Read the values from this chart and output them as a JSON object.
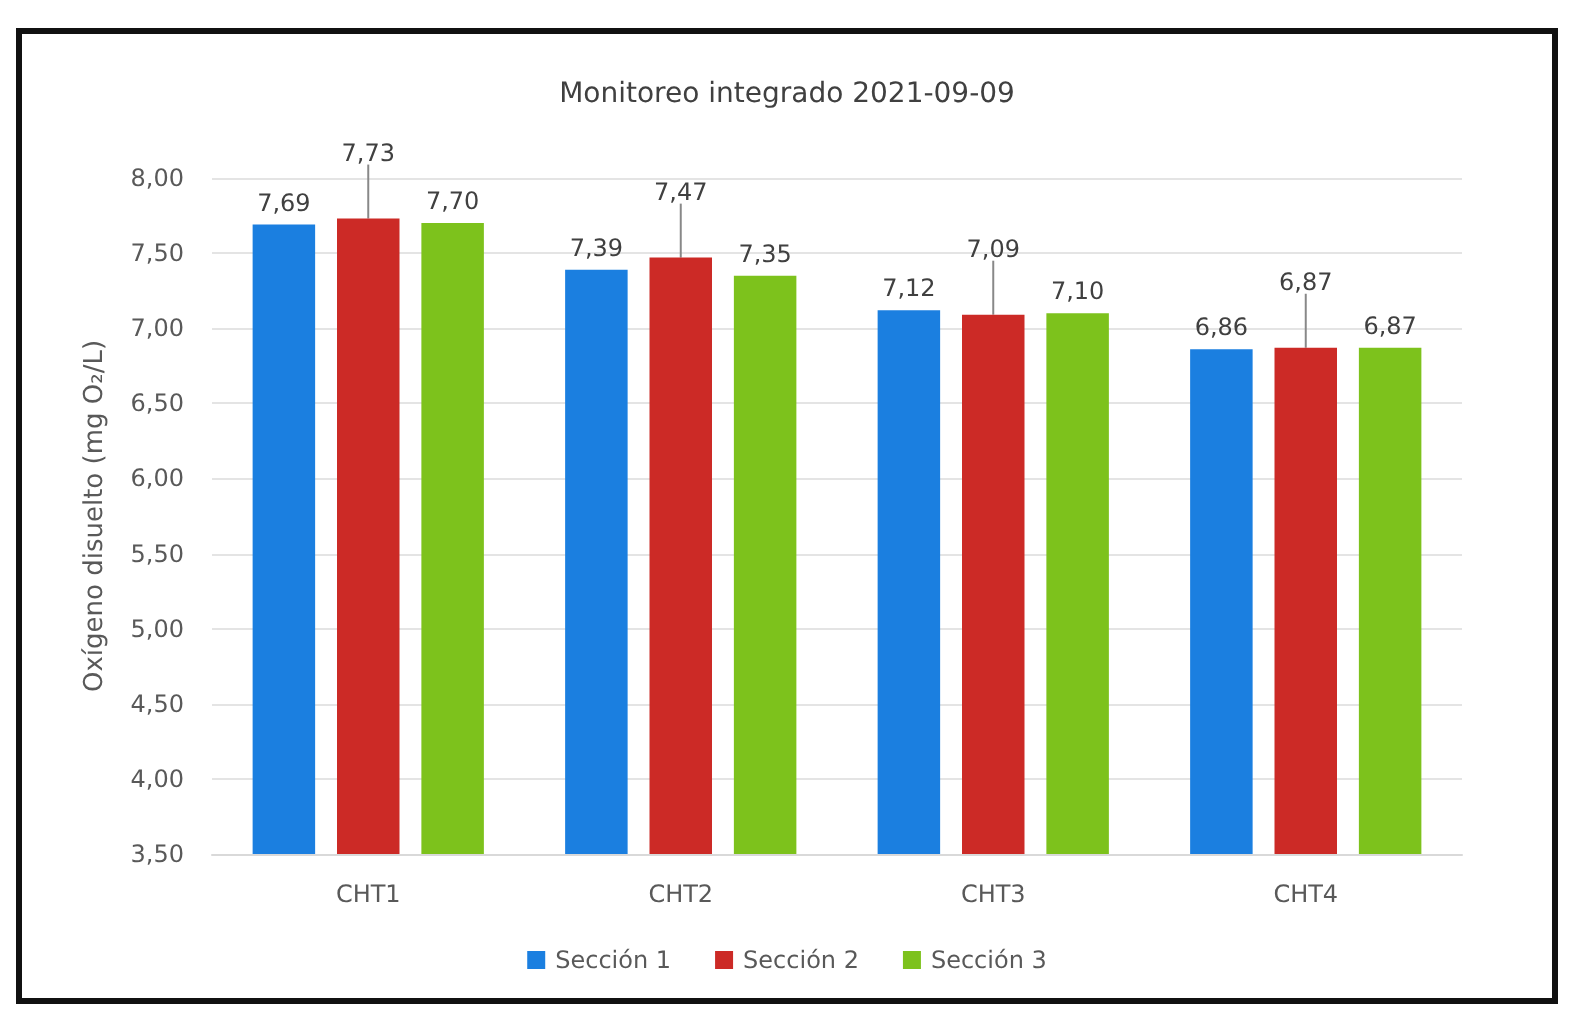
{
  "chart_data": {
    "type": "bar",
    "title": "Monitoreo integrado 2021-09-09",
    "ylabel": "Oxígeno disuelto (mg O₂/L)",
    "categories": [
      "CHT1",
      "CHT2",
      "CHT3",
      "CHT4"
    ],
    "series": [
      {
        "name": "Sección 1",
        "color": "#1b7fe0",
        "values": [
          7.69,
          7.39,
          7.12,
          6.86
        ],
        "value_labels": [
          "7,69",
          "7,39",
          "7,12",
          "6,86"
        ]
      },
      {
        "name": "Sección 2",
        "color": "#cc2a26",
        "values": [
          7.73,
          7.47,
          7.09,
          6.87
        ],
        "value_labels": [
          "7,73",
          "7,47",
          "7,09",
          "6,87"
        ]
      },
      {
        "name": "Sección 3",
        "color": "#7dc21c",
        "values": [
          7.7,
          7.35,
          7.1,
          6.87
        ],
        "value_labels": [
          "7,70",
          "7,35",
          "7,10",
          "6,87"
        ]
      }
    ],
    "ylim": [
      3.5,
      8.0
    ],
    "yticks": [
      {
        "value": 3.5,
        "label": "3,50"
      },
      {
        "value": 4,
        "label": "4,00"
      },
      {
        "value": 4.5,
        "label": "4,50"
      },
      {
        "value": 5,
        "label": "5,00"
      },
      {
        "value": 5.5,
        "label": "5,50"
      },
      {
        "value": 6,
        "label": "6,00"
      },
      {
        "value": 6.5,
        "label": "6,50"
      },
      {
        "value": 7,
        "label": "7,00"
      },
      {
        "value": 7.5,
        "label": "7,50"
      },
      {
        "value": 8,
        "label": "8,00"
      }
    ],
    "grid": "y",
    "legend": "bottom"
  }
}
